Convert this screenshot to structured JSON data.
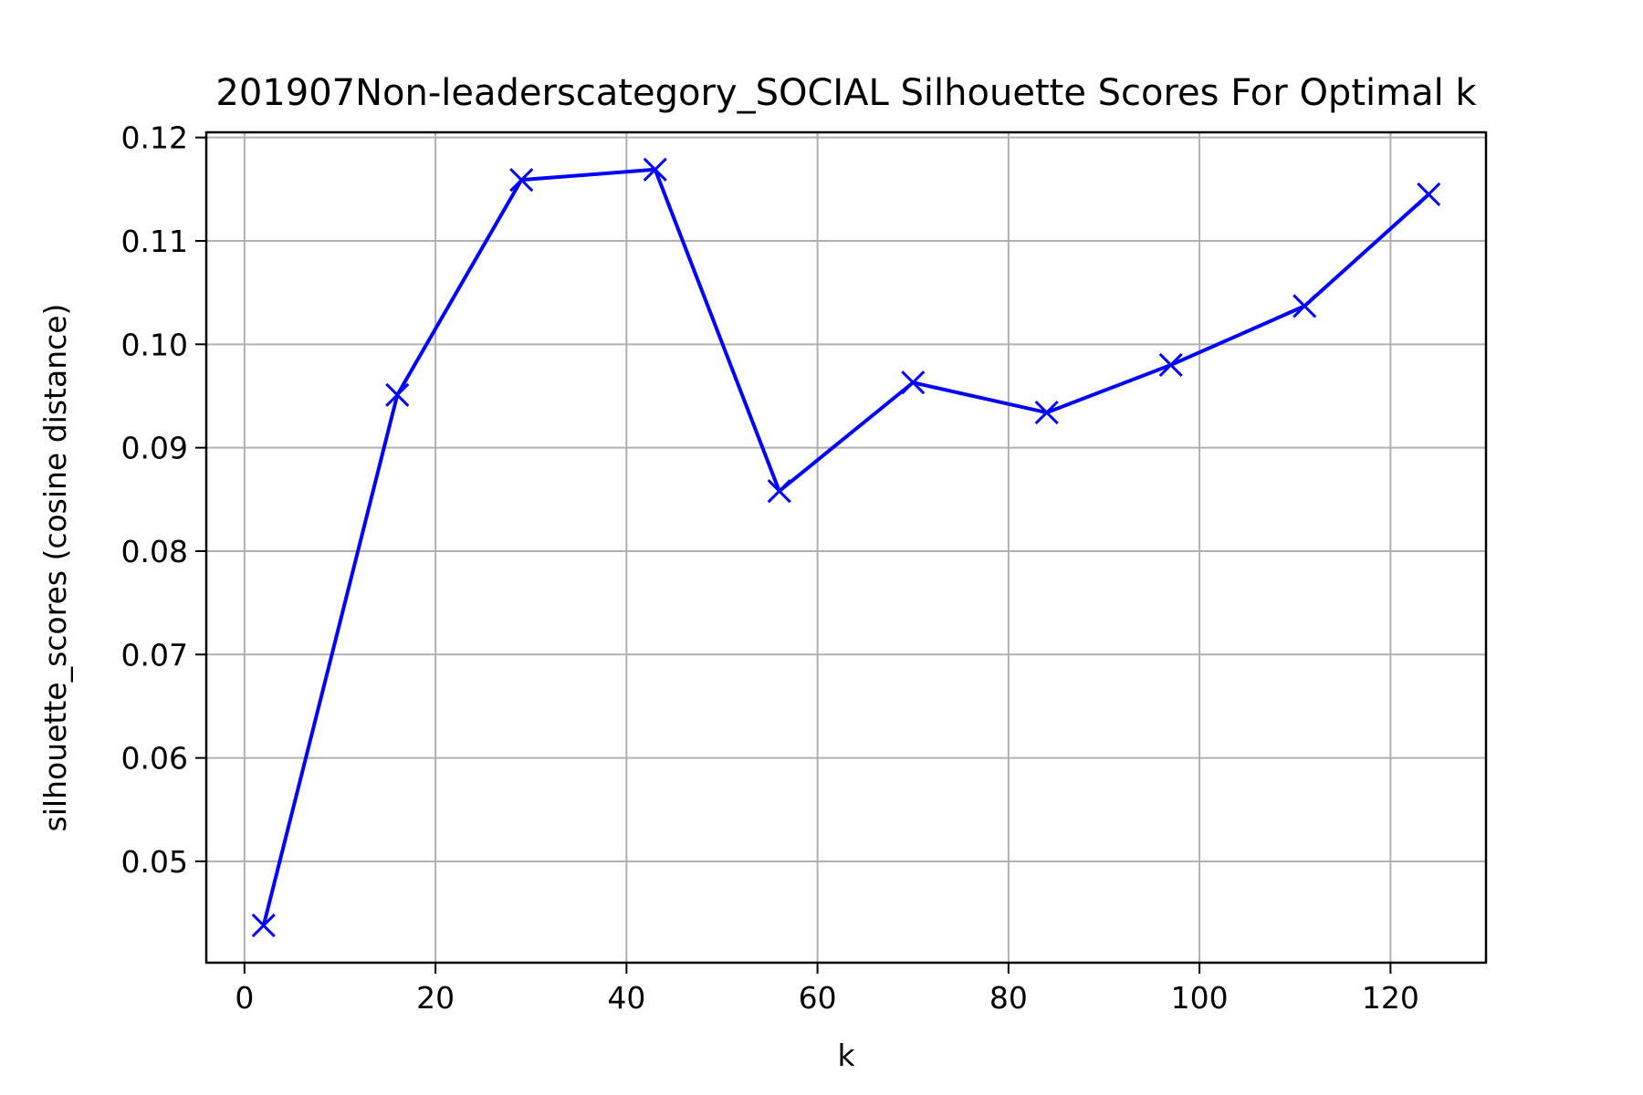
{
  "chart_data": {
    "type": "line",
    "title": "201907Non-leaderscategory_SOCIAL Silhouette Scores For Optimal k",
    "xlabel": "k",
    "ylabel": "silhouette_scores (cosine distance)",
    "xlim": [
      -4,
      130
    ],
    "ylim": [
      0.0402,
      0.1205
    ],
    "x_ticks": [
      0,
      20,
      40,
      60,
      80,
      100,
      120
    ],
    "y_ticks": [
      0.05,
      0.06,
      0.07,
      0.08,
      0.09,
      0.1,
      0.11,
      0.12
    ],
    "x_tick_labels": [
      "0",
      "20",
      "40",
      "60",
      "80",
      "100",
      "120"
    ],
    "y_tick_labels": [
      "0.05",
      "0.06",
      "0.07",
      "0.08",
      "0.09",
      "0.10",
      "0.11",
      "0.12"
    ],
    "grid": true,
    "marker": "x",
    "line_color": "#0000ff",
    "series": [
      {
        "x": [
          2,
          16,
          29,
          43,
          56,
          70,
          84,
          97,
          111,
          124
        ],
        "y": [
          0.0438,
          0.0951,
          0.1159,
          0.1169,
          0.0858,
          0.0963,
          0.0934,
          0.098,
          0.1037,
          0.1145
        ]
      }
    ]
  }
}
